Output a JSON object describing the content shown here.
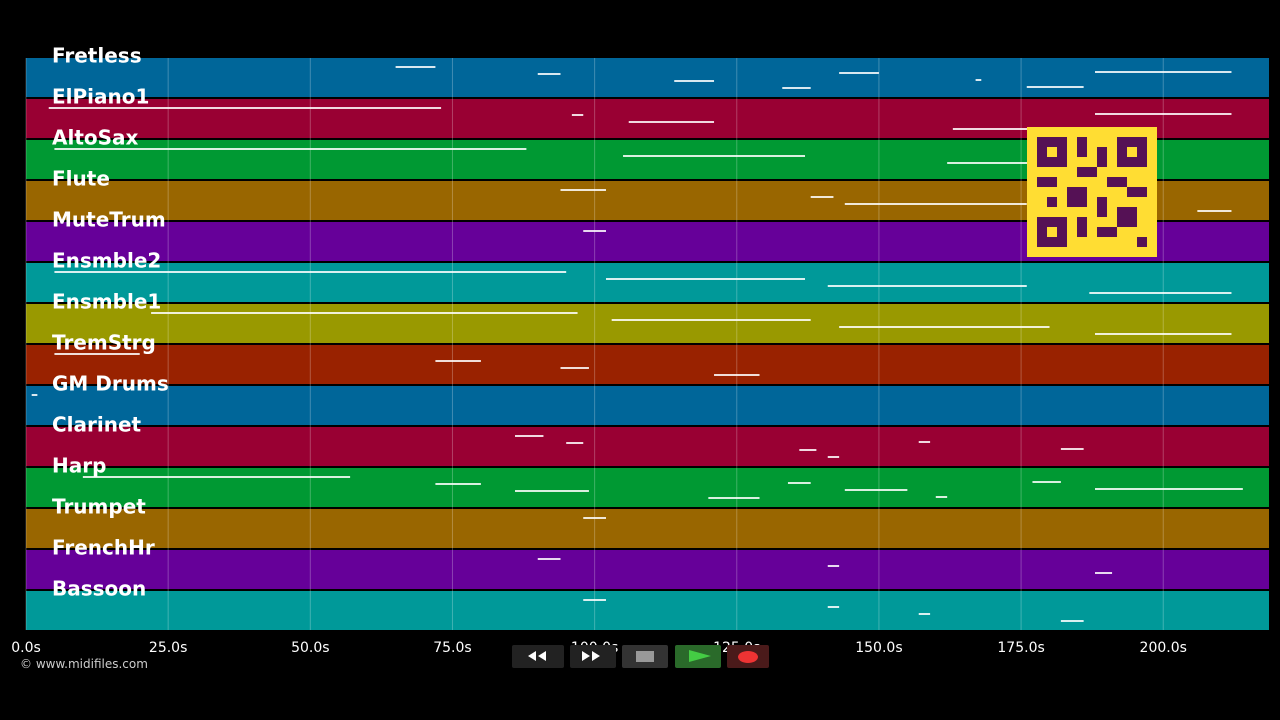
{
  "timeline": {
    "xlim": [
      0,
      218.6
    ],
    "ticks": [
      {
        "value": 0,
        "label": "0.0s"
      },
      {
        "value": 25,
        "label": "25.0s"
      },
      {
        "value": 50,
        "label": "50.0s"
      },
      {
        "value": 75,
        "label": "75.0s"
      },
      {
        "value": 100,
        "label": "100.0s"
      },
      {
        "value": 125,
        "label": "125.0s"
      },
      {
        "value": 150,
        "label": "150.0s"
      },
      {
        "value": 175,
        "label": "175.0s"
      },
      {
        "value": 200,
        "label": "200.0s"
      }
    ]
  },
  "tracks": [
    {
      "name": "Fretless",
      "color": "#006699",
      "notes": [
        [
          65,
          72
        ],
        [
          90,
          94
        ],
        [
          114,
          121
        ],
        [
          133,
          138
        ],
        [
          143,
          150
        ],
        [
          167,
          168
        ],
        [
          176,
          186
        ],
        [
          188,
          212
        ]
      ]
    },
    {
      "name": "ElPiano1",
      "color": "#990033",
      "notes": [
        [
          4,
          73
        ],
        [
          96,
          98
        ],
        [
          106,
          121
        ],
        [
          163,
          177
        ],
        [
          188,
          212
        ]
      ]
    },
    {
      "name": "AltoSax",
      "color": "#009933",
      "notes": [
        [
          5,
          88
        ],
        [
          105,
          137
        ],
        [
          162,
          177
        ]
      ]
    },
    {
      "name": "Flute",
      "color": "#996600",
      "notes": [
        [
          94,
          102
        ],
        [
          138,
          142
        ],
        [
          144,
          176
        ],
        [
          206,
          212
        ]
      ]
    },
    {
      "name": "MuteTrum",
      "color": "#660099",
      "notes": [
        [
          98,
          102
        ]
      ]
    },
    {
      "name": "Ensmble2",
      "color": "#009999",
      "notes": [
        [
          5,
          95
        ],
        [
          102,
          137
        ],
        [
          141,
          176
        ],
        [
          187,
          212
        ]
      ]
    },
    {
      "name": "Ensmble1",
      "color": "#999900",
      "notes": [
        [
          22,
          97
        ],
        [
          103,
          138
        ],
        [
          143,
          180
        ],
        [
          188,
          212
        ]
      ]
    },
    {
      "name": "TremStrg",
      "color": "#992200",
      "notes": [
        [
          5,
          20
        ],
        [
          72,
          80
        ],
        [
          94,
          99
        ],
        [
          121,
          129
        ]
      ]
    },
    {
      "name": "GM Drums",
      "color": "#006699",
      "notes": [
        [
          1,
          2
        ]
      ]
    },
    {
      "name": "Clarinet",
      "color": "#990033",
      "notes": [
        [
          86,
          91
        ],
        [
          95,
          98
        ],
        [
          136,
          139
        ],
        [
          141,
          143
        ],
        [
          157,
          159
        ],
        [
          182,
          186
        ]
      ]
    },
    {
      "name": "Harp",
      "color": "#009933",
      "notes": [
        [
          10,
          57
        ],
        [
          72,
          80
        ],
        [
          86,
          99
        ],
        [
          120,
          129
        ],
        [
          134,
          138
        ],
        [
          144,
          155
        ],
        [
          160,
          162
        ],
        [
          177,
          182
        ],
        [
          188,
          214
        ]
      ]
    },
    {
      "name": "Trumpet",
      "color": "#996600",
      "notes": [
        [
          98,
          102
        ]
      ]
    },
    {
      "name": "FrenchHr",
      "color": "#660099",
      "notes": [
        [
          90,
          94
        ],
        [
          141,
          143
        ],
        [
          188,
          191
        ]
      ]
    },
    {
      "name": "Bassoon",
      "color": "#009999",
      "notes": [
        [
          98,
          102
        ],
        [
          141,
          143
        ],
        [
          157,
          159
        ],
        [
          182,
          186
        ]
      ]
    }
  ],
  "credit": "© www.midifiles.com"
}
